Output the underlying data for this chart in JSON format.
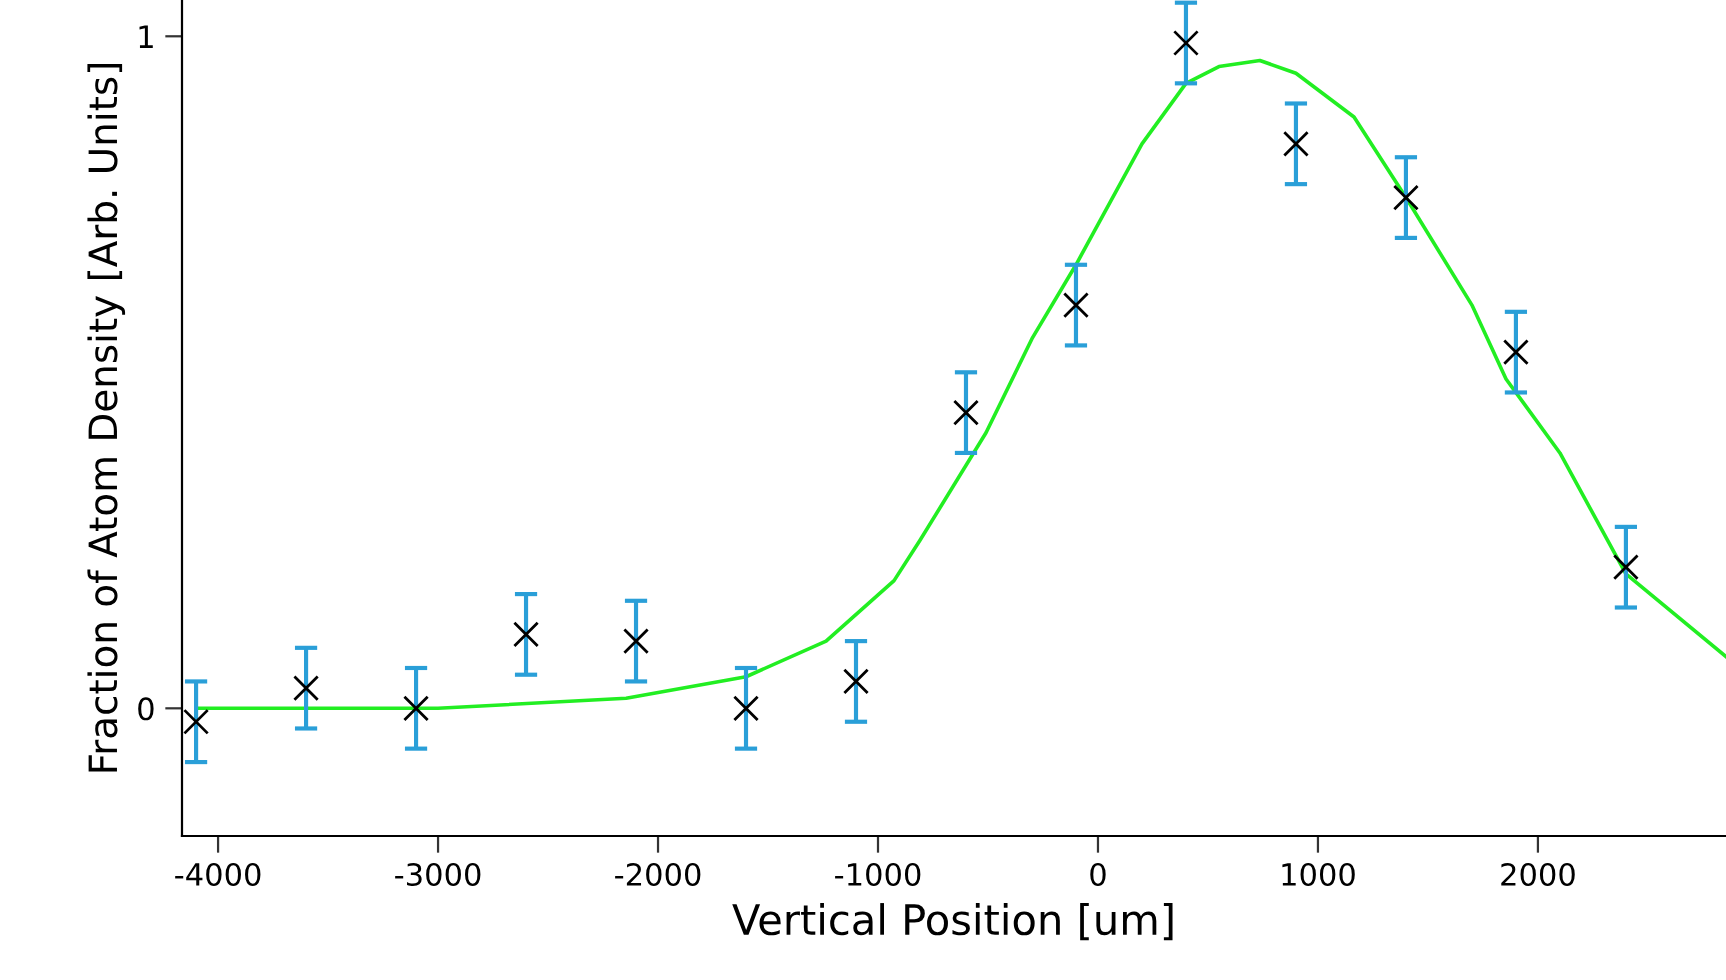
{
  "chart_data": {
    "type": "scatter",
    "xlabel": "Vertical Position [um]",
    "ylabel": "Fraction of Atom Density [Arb. Units]",
    "xlim": [
      -4164,
      2855
    ],
    "ylim": [
      -0.19,
      1.054
    ],
    "xticks": [
      -4000,
      -3000,
      -2000,
      -1000,
      0,
      1000,
      2000
    ],
    "yticks": [
      0,
      1
    ],
    "grid": false,
    "legend": false,
    "series": [
      {
        "color": "#000000",
        "marker": "cross",
        "x": [
          -4100,
          -3600,
          -3100,
          -2600,
          -2100,
          -1600,
          -1100,
          -600,
          -100,
          400,
          900,
          1400,
          1900,
          2400
        ],
        "values": [
          -0.02,
          0.03,
          0.0,
          0.11,
          0.1,
          0.0,
          0.04,
          0.44,
          0.6,
          0.99,
          0.84,
          0.76,
          0.53,
          0.21
        ],
        "errors": [
          0.06,
          0.06,
          0.06,
          0.06,
          0.06,
          0.06,
          0.06,
          0.06,
          0.06,
          0.06,
          0.06,
          0.06,
          0.06,
          0.06
        ]
      },
      {
        "type": "line",
        "color": "#22ee22",
        "marker": "none",
        "line_style": "solid",
        "x": [
          -4100,
          -3000,
          -2145,
          -1600,
          -1236,
          -927,
          -809,
          -509,
          -300,
          -100,
          200,
          400,
          550,
          736,
          900,
          1164,
          1400,
          1700,
          1855,
          2100,
          2400,
          2855
        ],
        "values": [
          0.0,
          0.0,
          0.015,
          0.047,
          0.1,
          0.19,
          0.25,
          0.41,
          0.55,
          0.66,
          0.84,
          0.93,
          0.955,
          0.964,
          0.945,
          0.88,
          0.76,
          0.6,
          0.49,
          0.38,
          0.2,
          0.077
        ]
      }
    ]
  }
}
